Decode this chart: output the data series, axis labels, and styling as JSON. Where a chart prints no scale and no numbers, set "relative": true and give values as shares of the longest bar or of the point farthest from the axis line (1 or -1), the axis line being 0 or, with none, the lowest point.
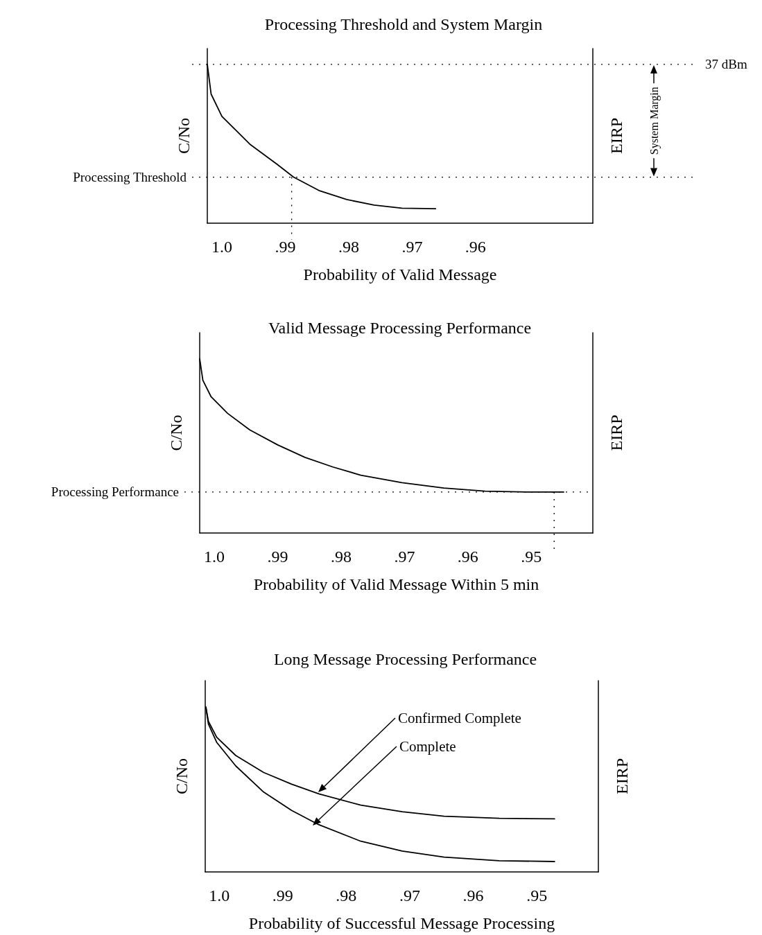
{
  "chart_data": [
    {
      "type": "line",
      "title": "Processing Threshold and System Margin",
      "xlabel": "Probability of Valid Message",
      "ylabel": "C/No",
      "y2label": "EIRP",
      "relative": true,
      "marker": "none",
      "line_style": "solid",
      "x": [
        1.0023,
        1.0017,
        1.0,
        0.9956,
        0.9913,
        0.9887,
        0.9847,
        0.9803,
        0.976,
        0.9716,
        0.9663
      ],
      "series": [
        {
          "color": "#000000",
          "values": [
            1.0,
            0.813,
            0.673,
            0.498,
            0.371,
            0.29,
            0.206,
            0.149,
            0.114,
            0.094,
            0.091
          ]
        }
      ],
      "xlim": [
        1.0023,
        0.9415
      ],
      "xticks": [
        {
          "value": 1,
          "label": "1.0"
        },
        {
          "value": 0.99,
          "label": ".99"
        },
        {
          "value": 0.98,
          "label": ".98"
        },
        {
          "value": 0.97,
          "label": ".97"
        },
        {
          "value": 0.96,
          "label": ".96"
        }
      ],
      "ref_lines": [
        {
          "axis": "y",
          "value": 1.0,
          "label": "37 dBm",
          "line_style": "dotted"
        },
        {
          "axis": "y",
          "value": 0.29,
          "label": "Processing Threshold",
          "line_style": "dotted"
        },
        {
          "axis": "x",
          "value": 0.989,
          "line_style": "dotted"
        }
      ],
      "annotations": [
        "System Margin"
      ]
    },
    {
      "type": "line",
      "title": "Valid Message Processing Performance",
      "xlabel": "Probability of Valid Message Within 5 min",
      "ylabel": "C/No",
      "y2label": "EIRP",
      "relative": true,
      "marker": "none",
      "line_style": "solid",
      "x": [
        1.0023,
        1.0018,
        1.0005,
        0.9979,
        0.9944,
        0.99,
        0.9857,
        0.9813,
        0.9769,
        0.9704,
        0.9638,
        0.9573,
        0.9507,
        0.9449
      ],
      "series": [
        {
          "color": "#000000",
          "values": [
            1.0,
            0.877,
            0.782,
            0.687,
            0.592,
            0.506,
            0.434,
            0.379,
            0.332,
            0.289,
            0.258,
            0.24,
            0.235,
            0.235
          ]
        }
      ],
      "xlim": [
        1.0023,
        0.9403
      ],
      "xticks": [
        {
          "value": 1,
          "label": "1.0"
        },
        {
          "value": 0.99,
          "label": ".99"
        },
        {
          "value": 0.98,
          "label": ".98"
        },
        {
          "value": 0.97,
          "label": ".97"
        },
        {
          "value": 0.96,
          "label": ".96"
        },
        {
          "value": 0.95,
          "label": ".95"
        }
      ],
      "ref_lines": [
        {
          "axis": "y",
          "value": 0.235,
          "label": "Processing Performance",
          "line_style": "dotted"
        },
        {
          "axis": "x",
          "value": 0.9464,
          "line_style": "dotted"
        }
      ]
    },
    {
      "type": "line",
      "title": "Long Message Processing Performance",
      "xlabel": "Probability of Successful Message Processing",
      "ylabel": "C/No",
      "y2label": "EIRP",
      "relative": true,
      "marker": "none",
      "line_style": "solid",
      "x": [
        1.0021,
        1.0017,
        1.0004,
        0.9974,
        0.993,
        0.9886,
        0.9843,
        0.9777,
        0.9712,
        0.9646,
        0.9559,
        0.9472
      ],
      "series": [
        {
          "color": "#000000",
          "values": [
            1.0,
            0.913,
            0.817,
            0.706,
            0.603,
            0.532,
            0.473,
            0.405,
            0.365,
            0.338,
            0.325,
            0.322
          ]
        },
        {
          "color": "#000000",
          "values": [
            1.0,
            0.897,
            0.786,
            0.643,
            0.484,
            0.373,
            0.286,
            0.186,
            0.127,
            0.09,
            0.068,
            0.063
          ]
        }
      ],
      "xlim": [
        1.0022,
        0.9403
      ],
      "xticks": [
        {
          "value": 1,
          "label": "1.0"
        },
        {
          "value": 0.99,
          "label": ".99"
        },
        {
          "value": 0.98,
          "label": ".98"
        },
        {
          "value": 0.97,
          "label": ".97"
        },
        {
          "value": 0.96,
          "label": ".96"
        },
        {
          "value": 0.95,
          "label": ".95"
        }
      ],
      "annotations": [
        "Confirmed Complete",
        "Complete"
      ]
    }
  ]
}
